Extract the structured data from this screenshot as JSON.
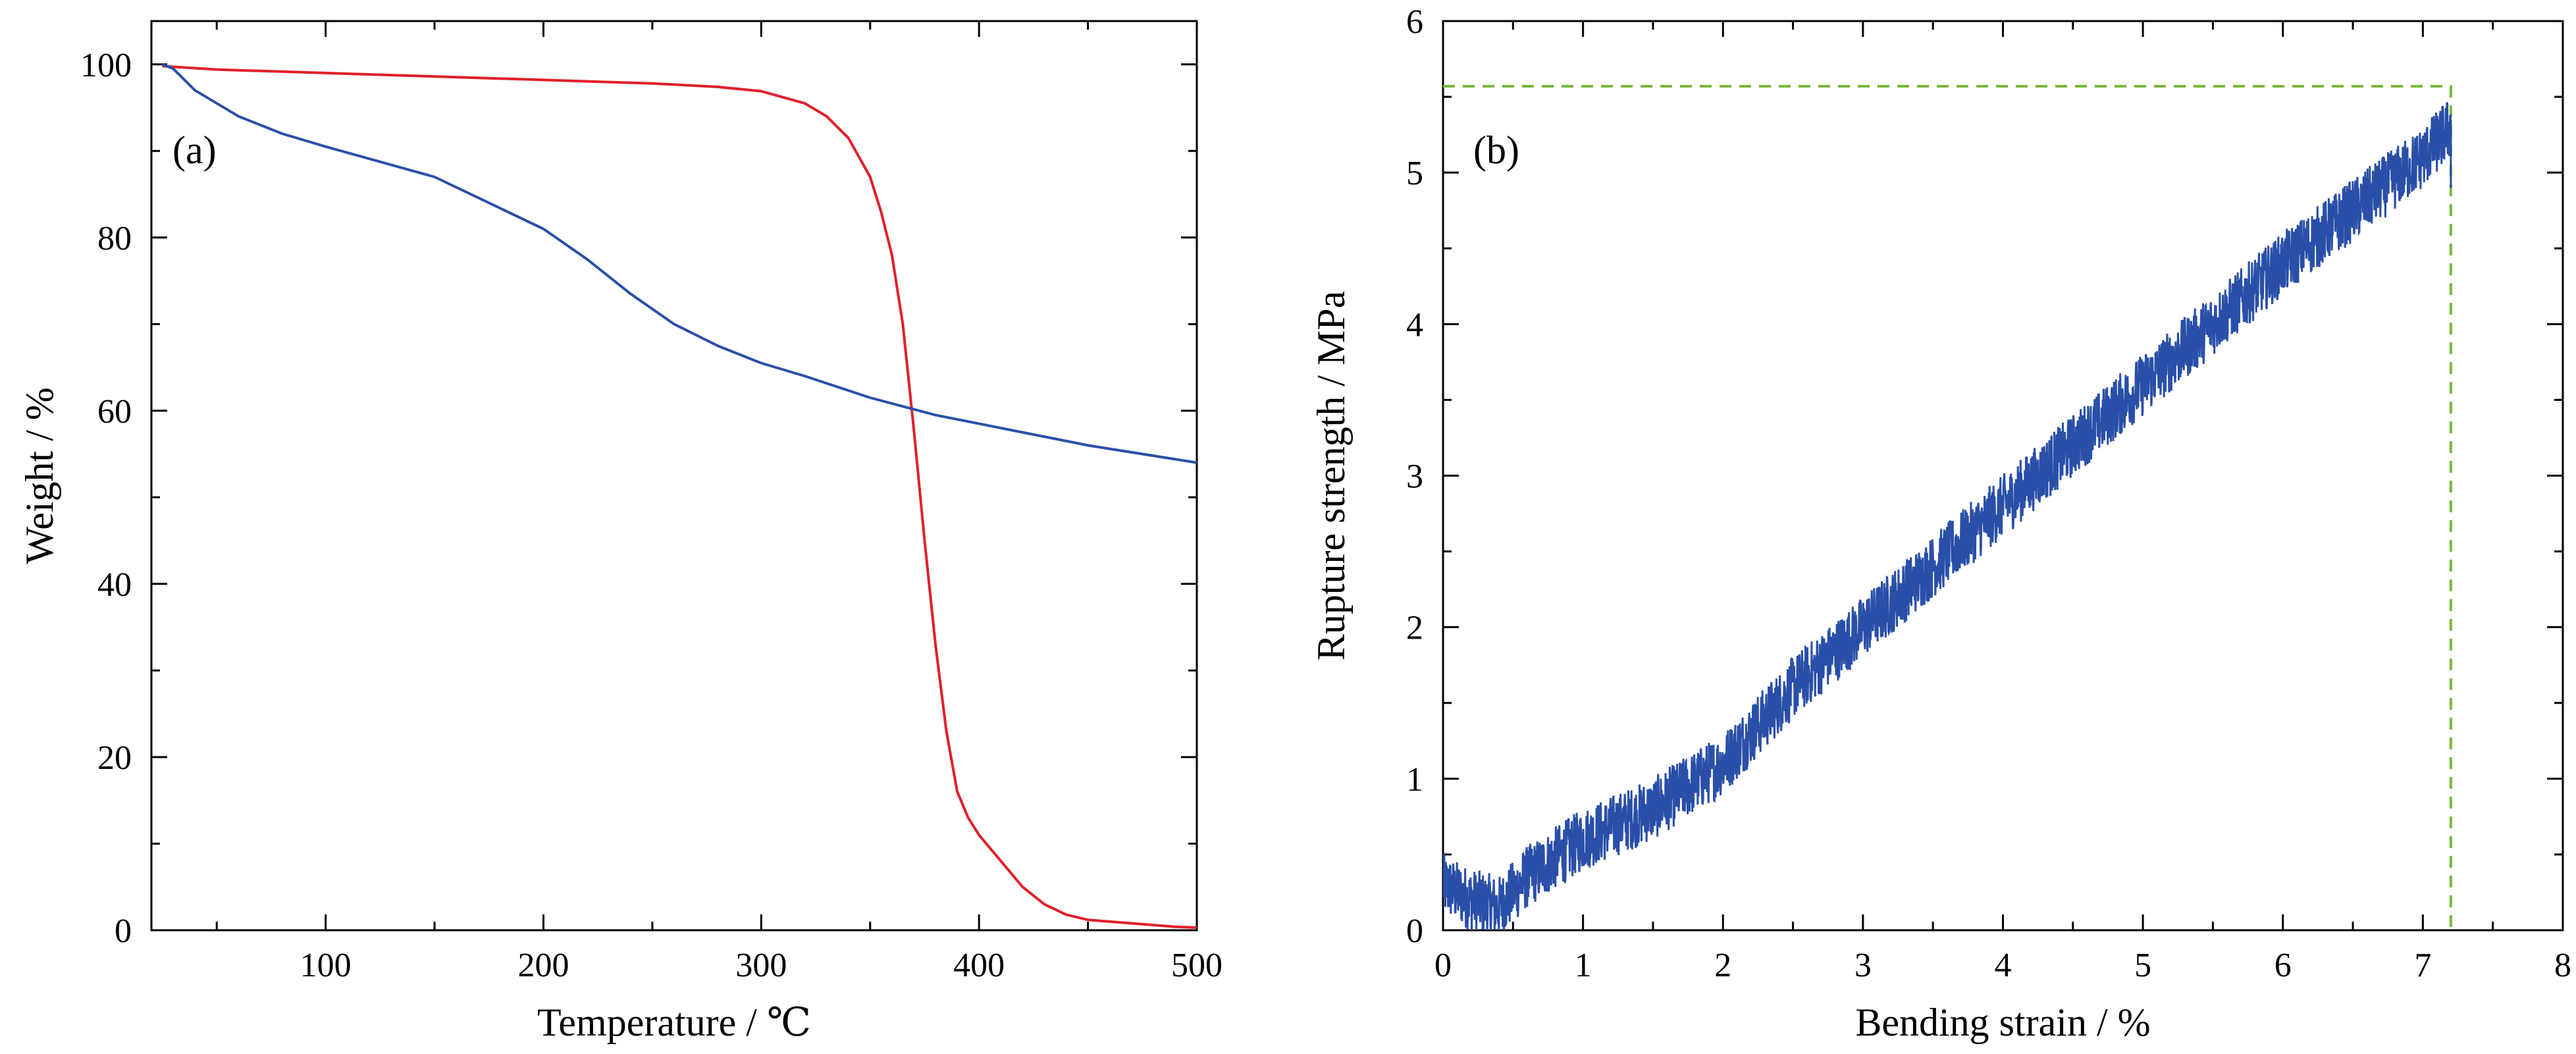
{
  "chart_data": [
    {
      "panel_label": "(a)",
      "type": "line",
      "xlabel": "Temperature / ℃",
      "ylabel": "Weight / %",
      "xlim": [
        20,
        500
      ],
      "ylim": [
        0,
        105
      ],
      "xticks": [
        100,
        200,
        300,
        400,
        500
      ],
      "yticks": [
        0,
        20,
        40,
        60,
        80,
        100
      ],
      "xtick_labels": [
        "100",
        "200",
        "300",
        "400",
        "500"
      ],
      "ytick_labels": [
        "0",
        "20",
        "40",
        "60",
        "80",
        "100"
      ],
      "grid": false,
      "legend": "none",
      "series": [
        {
          "color": "#e0202a",
          "x": [
            25,
            50,
            100,
            150,
            200,
            250,
            280,
            300,
            320,
            330,
            340,
            350,
            355,
            360,
            365,
            370,
            375,
            380,
            385,
            390,
            395,
            400,
            410,
            420,
            430,
            440,
            450,
            470,
            490,
            500
          ],
          "y": [
            99.8,
            99.4,
            99,
            98.6,
            98.2,
            97.8,
            97.4,
            96.9,
            95.5,
            94,
            91.5,
            87,
            83,
            78,
            70,
            58,
            45,
            33,
            23,
            16,
            13,
            11,
            8,
            5,
            3,
            1.8,
            1.2,
            0.8,
            0.4,
            0.3
          ]
        },
        {
          "color": "#2a4fa8",
          "x": [
            25,
            30,
            40,
            60,
            80,
            100,
            150,
            200,
            220,
            240,
            260,
            280,
            300,
            320,
            350,
            380,
            400,
            450,
            500
          ],
          "y": [
            100,
            99.5,
            97,
            94,
            92,
            90.5,
            87,
            81,
            77.5,
            73.5,
            70,
            67.5,
            65.5,
            64,
            61.5,
            59.5,
            58.5,
            56,
            54
          ]
        }
      ]
    },
    {
      "panel_label": "(b)",
      "type": "line",
      "xlabel": "Bending strain / %",
      "ylabel": "Rupture strength / MPa",
      "xlim": [
        0,
        8
      ],
      "ylim": [
        0,
        6
      ],
      "xticks": [
        0,
        1,
        2,
        3,
        4,
        5,
        6,
        7,
        8
      ],
      "yticks": [
        0,
        1,
        2,
        3,
        4,
        5,
        6
      ],
      "xtick_labels": [
        "0",
        "1",
        "2",
        "3",
        "4",
        "5",
        "6",
        "7",
        "8"
      ],
      "ytick_labels": [
        "0",
        "1",
        "2",
        "3",
        "4",
        "5",
        "6"
      ],
      "grid": false,
      "legend": "none",
      "series": [
        {
          "color": "#2a4fa8",
          "style": "noisy",
          "x": [
            0,
            0.2,
            0.4,
            0.6,
            1.0,
            1.5,
            2.0,
            2.5,
            3.0,
            3.5,
            4.0,
            4.5,
            5.0,
            5.5,
            6.0,
            6.5,
            7.0,
            7.2
          ],
          "y": [
            0.3,
            0.2,
            0.15,
            0.35,
            0.6,
            0.8,
            1.1,
            1.6,
            2.0,
            2.4,
            2.8,
            3.2,
            3.6,
            4.0,
            4.4,
            4.75,
            5.1,
            5.3
          ]
        }
      ],
      "reference_lines": {
        "color": "#7ab83a",
        "max_strength": 5.57,
        "max_strain": 7.2
      }
    }
  ]
}
